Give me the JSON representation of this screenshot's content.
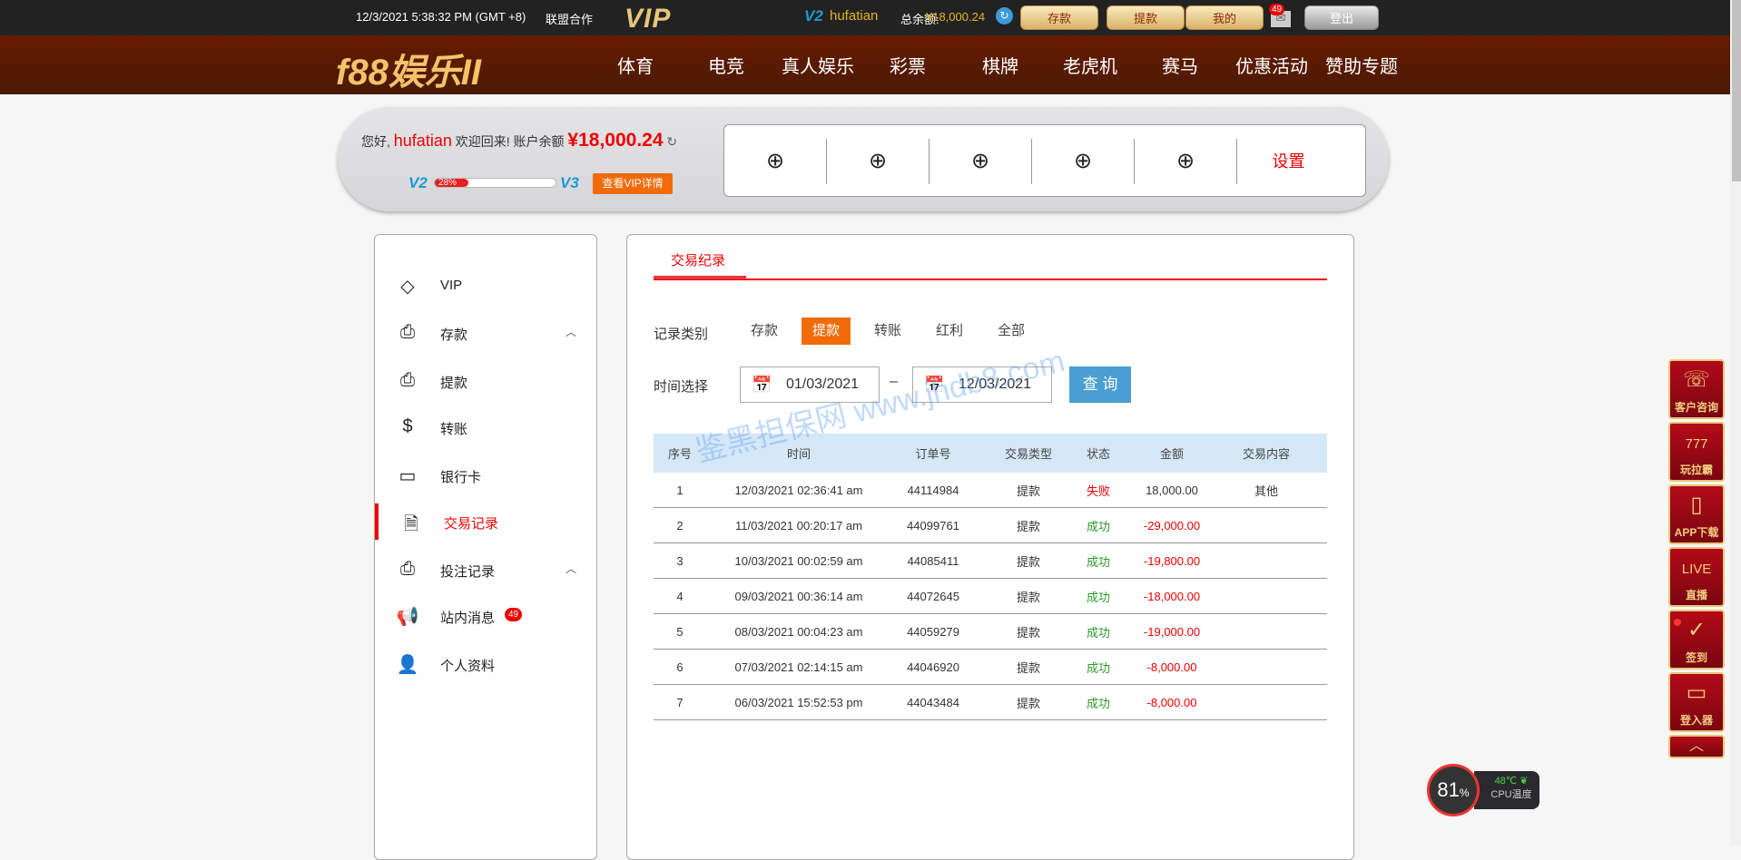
{
  "topbar": {
    "datetime": "12/3/2021 5:38:32 PM (GMT +8)",
    "partner": "联盟合作",
    "vip_logo": "VIP",
    "level": "V2",
    "username": "hufatian",
    "balance_label": "总余额:",
    "balance": "¥18,000.24",
    "buttons": [
      "存款",
      "提款",
      "我的"
    ],
    "mail_count": "49",
    "logout": "登出"
  },
  "nav": {
    "logo": "f88娱乐II",
    "items": [
      "体育",
      "电竞",
      "真人娱乐",
      "彩票",
      "棋牌",
      "老虎机",
      "赛马",
      "优惠活动",
      "赞助专题"
    ]
  },
  "account": {
    "hello": "您好,",
    "username": "hufatian",
    "welcome": "欢迎回来!",
    "balance_label": "账户余额",
    "balance": "¥18,000.24",
    "level_from": "V2",
    "level_to": "V3",
    "progress_percent": 28,
    "progress_text": "28%",
    "vip_button": "查看VIP详情",
    "quick_slots": [
      "+",
      "+",
      "+",
      "+",
      "+"
    ],
    "settings": "设置"
  },
  "sidebar": {
    "items": [
      {
        "label": "VIP",
        "icon": "diamond-icon"
      },
      {
        "label": "存款",
        "icon": "deposit-icon",
        "chevron": "^"
      },
      {
        "label": "提款",
        "icon": "withdraw-icon"
      },
      {
        "label": "转账",
        "icon": "transfer-icon"
      },
      {
        "label": "银行卡",
        "icon": "wallet-icon"
      },
      {
        "label": "交易记录",
        "icon": "record-icon",
        "active": true
      },
      {
        "label": "投注记录",
        "icon": "bet-icon",
        "chevron": "^"
      },
      {
        "label": "站内消息",
        "icon": "megaphone-icon",
        "badge": "49"
      },
      {
        "label": "个人资料",
        "icon": "user-icon"
      }
    ]
  },
  "main": {
    "tab": "交易纪录",
    "category_label": "记录类别",
    "categories": [
      "存款",
      "提款",
      "转账",
      "红利",
      "全部"
    ],
    "selected_category": "提款",
    "time_label": "时间选择",
    "date_from": "01/03/2021",
    "date_sep": "–",
    "date_to": "12/03/2021",
    "query": "查 询",
    "table": {
      "headers": [
        "序号",
        "时间",
        "订单号",
        "交易类型",
        "状态",
        "金额",
        "交易内容"
      ],
      "rows": [
        [
          "1",
          "12/03/2021 02:36:41 am",
          "44114984",
          "提款",
          "失败",
          "18,000.00",
          "其他"
        ],
        [
          "2",
          "11/03/2021 00:20:17 am",
          "44099761",
          "提款",
          "成功",
          "-29,000.00",
          ""
        ],
        [
          "3",
          "10/03/2021 00:02:59 am",
          "44085411",
          "提款",
          "成功",
          "-19,800.00",
          ""
        ],
        [
          "4",
          "09/03/2021 00:36:14 am",
          "44072645",
          "提款",
          "成功",
          "-18,000.00",
          ""
        ],
        [
          "5",
          "08/03/2021 00:04:23 am",
          "44059279",
          "提款",
          "成功",
          "-19,000.00",
          ""
        ],
        [
          "6",
          "07/03/2021 02:14:15 am",
          "44046920",
          "提款",
          "成功",
          "-8,000.00",
          ""
        ],
        [
          "7",
          "06/03/2021 15:52:53 pm",
          "44043484",
          "提款",
          "成功",
          "-8,000.00",
          ""
        ]
      ]
    }
  },
  "float": [
    {
      "label": "客户咨询",
      "icon": "phone-24-icon"
    },
    {
      "label": "玩拉霸",
      "icon": "slot-machine-icon"
    },
    {
      "label": "APP下载",
      "icon": "mobile-icon"
    },
    {
      "label": "直播",
      "icon": "live-tv-icon"
    },
    {
      "label": "签到",
      "icon": "check-circle-icon"
    },
    {
      "label": "登入器",
      "icon": "browser-window-icon"
    }
  ],
  "cpu": {
    "usage": "81",
    "unit": "%",
    "temp": "48℃",
    "label": "CPU温度"
  },
  "watermark": "鉴黑担保网 www.jhdb8.com",
  "colors": {
    "accent": "#e00000",
    "orange": "#f26b0a",
    "nav": "#5a1a02",
    "query": "#4a9ed1",
    "success": "#2a9a2a"
  }
}
